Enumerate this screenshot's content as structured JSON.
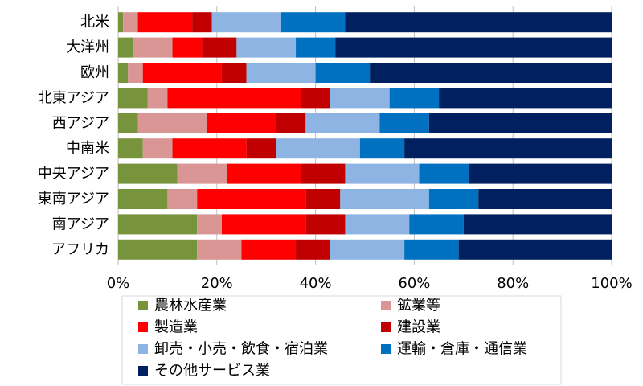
{
  "chart_data": {
    "type": "bar",
    "orientation": "horizontal",
    "stacked": "percent",
    "categories": [
      "北米",
      "大洋州",
      "欧州",
      "北東アジア",
      "西アジア",
      "中南米",
      "中央アジア",
      "東南アジア",
      "南アジア",
      "アフリカ"
    ],
    "series": [
      {
        "name": "農林水産業",
        "color": "#77933c",
        "values": [
          1,
          3,
          2,
          6,
          4,
          5,
          12,
          10,
          16,
          16
        ]
      },
      {
        "name": "鉱業等",
        "color": "#d99694",
        "values": [
          3,
          8,
          3,
          4,
          14,
          6,
          10,
          6,
          5,
          9
        ]
      },
      {
        "name": "製造業",
        "color": "#ff0000",
        "values": [
          11,
          6,
          16,
          27,
          14,
          15,
          15,
          22,
          17,
          11
        ]
      },
      {
        "name": "建設業",
        "color": "#c00000",
        "values": [
          4,
          7,
          5,
          6,
          6,
          6,
          9,
          7,
          8,
          7
        ]
      },
      {
        "name": "卸売・小売・飲食・宿泊業",
        "color": "#8db4e2",
        "values": [
          14,
          12,
          14,
          12,
          15,
          17,
          15,
          18,
          13,
          15
        ]
      },
      {
        "name": "運輸・倉庫・通信業",
        "color": "#0070c0",
        "values": [
          13,
          8,
          11,
          10,
          10,
          9,
          10,
          10,
          11,
          11
        ]
      },
      {
        "name": "その他サービス業",
        "color": "#002060",
        "values": [
          54,
          56,
          49,
          35,
          37,
          42,
          29,
          27,
          30,
          31
        ]
      }
    ],
    "xlim": [
      0,
      100
    ],
    "x_ticks": [
      0,
      20,
      40,
      60,
      80,
      100
    ],
    "x_tick_labels": [
      "0%",
      "20%",
      "40%",
      "60%",
      "80%",
      "100%"
    ],
    "title": "",
    "xlabel": "",
    "ylabel": "",
    "grid": true,
    "legend_position": "bottom"
  }
}
